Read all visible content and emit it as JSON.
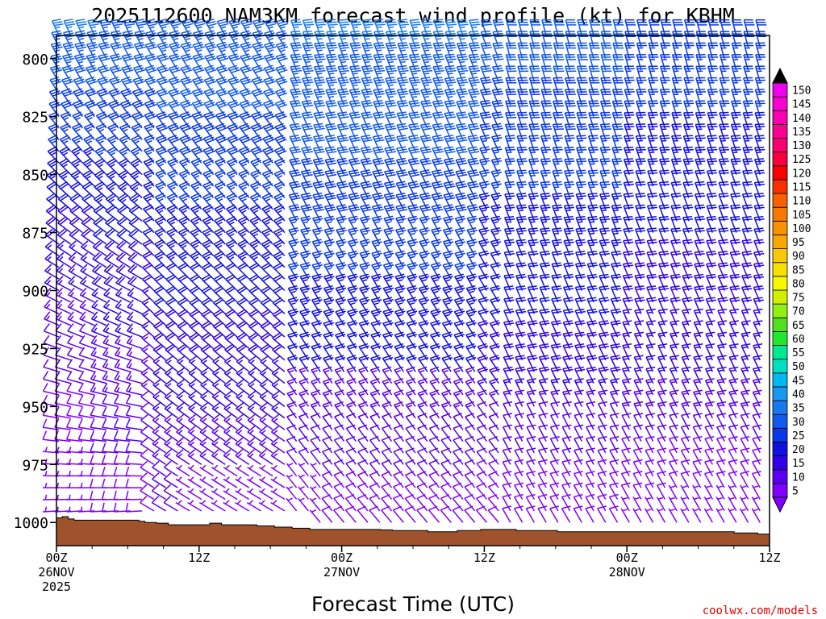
{
  "chart_data": {
    "type": "wind-barb-profile",
    "title": "2025112600 NAM3KM forecast wind profile (kt) for KBHM",
    "xlabel": "Forecast Time (UTC)",
    "ylabel": "",
    "credit": "coolwx.com/models",
    "x_ticks": [
      {
        "hour": 0,
        "lines": [
          "00Z",
          "26NOV",
          "2025"
        ]
      },
      {
        "hour": 12,
        "lines": [
          "12Z"
        ]
      },
      {
        "hour": 24,
        "lines": [
          "00Z",
          "27NOV"
        ]
      },
      {
        "hour": 36,
        "lines": [
          "12Z"
        ]
      },
      {
        "hour": 48,
        "lines": [
          "00Z",
          "28NOV"
        ]
      },
      {
        "hour": 60,
        "lines": [
          "12Z"
        ]
      }
    ],
    "xlim_hours": [
      0,
      60
    ],
    "y_ticks": [
      "800",
      "825",
      "850",
      "875",
      "900",
      "925",
      "950",
      "975",
      "1000"
    ],
    "ylim_hpa": [
      1010,
      790
    ],
    "colorbar": {
      "levels": [
        "5",
        "10",
        "15",
        "20",
        "25",
        "30",
        "35",
        "40",
        "45",
        "50",
        "55",
        "60",
        "65",
        "70",
        "75",
        "80",
        "85",
        "90",
        "95",
        "100",
        "105",
        "110",
        "115",
        "120",
        "125",
        "130",
        "135",
        "140",
        "145",
        "150"
      ],
      "colors": [
        "#8000ff",
        "#5a00f0",
        "#3000e8",
        "#1010e0",
        "#0838e8",
        "#1058ee",
        "#1878f0",
        "#1898f0",
        "#00b8f0",
        "#00e0c0",
        "#00e890",
        "#20e830",
        "#50e020",
        "#90f010",
        "#d0f000",
        "#f8f800",
        "#f8e000",
        "#f8c800",
        "#f8a800",
        "#f89000",
        "#f87800",
        "#f86000",
        "#f83000",
        "#f80000",
        "#f8003c",
        "#f80070",
        "#f80090",
        "#f800b0",
        "#f800d0",
        "#f000f0"
      ]
    },
    "terrain_color": "#a0522d",
    "surface_pressure_hpa": [
      998,
      997.5,
      998.5,
      999,
      999,
      999,
      999,
      999,
      999,
      999,
      999,
      999,
      999,
      999,
      999.5,
      1000,
      1000,
      1000.3,
      1000.3,
      1001,
      1001,
      1001,
      1001,
      1001,
      1001,
      1001,
      1000.3,
      1000.3,
      1001,
      1001,
      1001,
      1001,
      1001,
      1001,
      1001.5,
      1001.5,
      1001.5,
      1002,
      1002,
      1002,
      1002.5,
      1002.5,
      1002.5,
      1003,
      1003,
      1003,
      1003,
      1003,
      1003,
      1003,
      1003,
      1003,
      1003,
      1003,
      1003,
      1003.2,
      1003.2,
      1003.5,
      1003.5,
      1003.5,
      1003.5,
      1003.5,
      1003.5,
      1004,
      1004,
      1004,
      1004,
      1004,
      1003.5,
      1003.5,
      1003.5,
      1003.5,
      1003,
      1003,
      1003,
      1003,
      1003,
      1003,
      1003.5,
      1003.5,
      1003.5,
      1003.5,
      1003.5,
      1003.5,
      1003.5,
      1004,
      1004,
      1004,
      1004,
      1004,
      1004,
      1004,
      1004,
      1004,
      1004,
      1004,
      1004,
      1004,
      1004,
      1004,
      1004,
      1004,
      1004,
      1004,
      1004,
      1004,
      1004,
      1004,
      1004,
      1004,
      1004,
      1004,
      1004,
      1004,
      1004,
      1004.5,
      1004.5,
      1004.5,
      1004.5,
      1005,
      1005
    ],
    "wind_profile": {
      "levels_hpa": [
        790,
        795,
        800,
        805,
        810,
        815,
        820,
        825,
        830,
        835,
        840,
        845,
        850,
        855,
        860,
        865,
        870,
        875,
        880,
        885,
        890,
        895,
        900,
        905,
        910,
        915,
        920,
        925,
        930,
        935,
        940,
        945,
        950,
        955,
        960,
        965,
        970,
        975,
        980,
        985,
        990,
        995,
        1000
      ],
      "times_hours": [
        0,
        1,
        2,
        3,
        4,
        5,
        6,
        7,
        8,
        9,
        10,
        11,
        12,
        13,
        14,
        15,
        16,
        17,
        18,
        19,
        20,
        21,
        22,
        23,
        24,
        25,
        26,
        27,
        28,
        29,
        30,
        31,
        32,
        33,
        34,
        35,
        36,
        37,
        38,
        39,
        40,
        41,
        42,
        43,
        44,
        45,
        46,
        47,
        48,
        49,
        50,
        51,
        52,
        53,
        54,
        55,
        56,
        57,
        58,
        59,
        60
      ],
      "description": "Barbs show wind direction and speed (kt); low levels W-NW ~5-15 kt, mid-levels NW 20-40 kt early, veering NNW later"
    }
  }
}
